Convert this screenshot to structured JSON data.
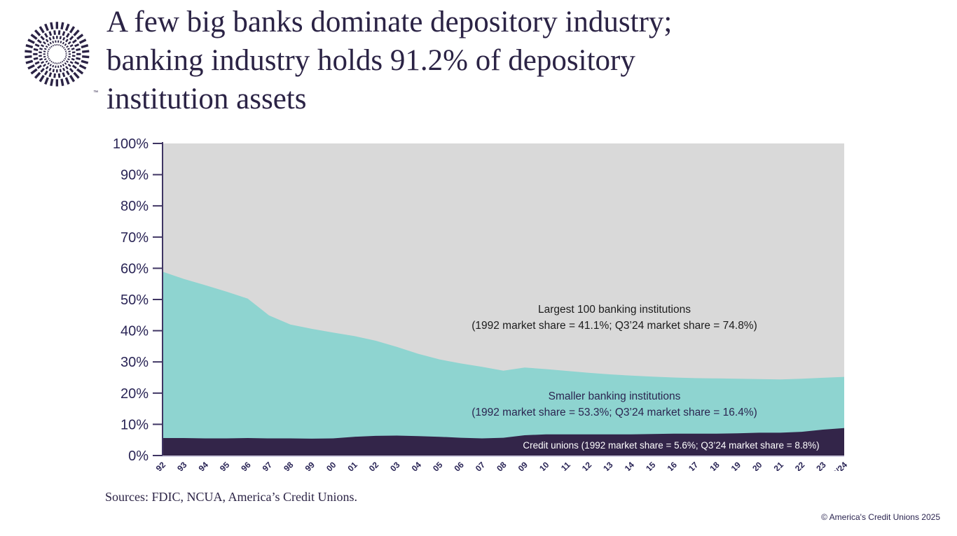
{
  "header": {
    "title_lines": [
      "A few big banks dominate depository industry;",
      "banking industry holds 91.2% of depository",
      "institution assets"
    ],
    "logo_tm": "™"
  },
  "footer": {
    "sources": "Sources: FDIC, NCUA, America’s Credit Unions.",
    "copyright": "© America's Credit Unions 2025"
  },
  "colors": {
    "title_text": "#2b2345",
    "axis_text": "#2a2556",
    "axis_line": "#3f3563",
    "bottom_axis_line": "#cfccdf",
    "credit_unions_area": "#332549",
    "smaller_banks_area": "#8ed4d0",
    "largest_banks_area": "#d9d9d9",
    "background": "#ffffff"
  },
  "chart_data": {
    "type": "area",
    "stacked": true,
    "title": "Depository institution asset market share by year",
    "xlabel": "",
    "ylabel": "",
    "ylim": [
      0,
      100
    ],
    "grid": false,
    "legend_position": "in-plot annotations",
    "x": [
      "92",
      "93",
      "94",
      "95",
      "96",
      "97",
      "98",
      "99",
      "00",
      "01",
      "02",
      "03",
      "04",
      "05",
      "06",
      "07",
      "08",
      "09",
      "10",
      "11",
      "12",
      "13",
      "14",
      "15",
      "16",
      "17",
      "18",
      "19",
      "20",
      "21",
      "22",
      "23",
      "09/24"
    ],
    "yticks": [
      "0%",
      "10%",
      "20%",
      "30%",
      "40%",
      "50%",
      "60%",
      "70%",
      "80%",
      "90%",
      "100%"
    ],
    "series": [
      {
        "name": "Credit unions",
        "color": "#332549",
        "values": [
          5.6,
          5.6,
          5.5,
          5.5,
          5.6,
          5.5,
          5.5,
          5.4,
          5.5,
          6.0,
          6.3,
          6.4,
          6.2,
          6.0,
          5.7,
          5.5,
          5.7,
          6.5,
          6.8,
          6.8,
          6.8,
          6.8,
          6.8,
          6.9,
          7.0,
          7.0,
          7.0,
          7.1,
          7.3,
          7.3,
          7.6,
          8.3,
          8.8
        ]
      },
      {
        "name": "Smaller banking institutions",
        "color": "#8ed4d0",
        "values": [
          53.3,
          51.0,
          49.1,
          47.0,
          44.7,
          39.4,
          36.5,
          35.2,
          33.9,
          32.3,
          30.5,
          28.4,
          26.4,
          24.8,
          23.8,
          22.9,
          21.5,
          21.7,
          20.9,
          20.3,
          19.7,
          19.2,
          18.8,
          18.4,
          18.0,
          17.8,
          17.7,
          17.5,
          17.2,
          17.1,
          17.0,
          16.6,
          16.4
        ]
      },
      {
        "name": "Largest 100 banking institutions",
        "color": "#d9d9d9",
        "values": [
          41.1,
          43.4,
          45.4,
          47.5,
          49.7,
          55.1,
          58.0,
          59.4,
          60.6,
          61.7,
          63.2,
          65.2,
          67.4,
          69.2,
          70.5,
          71.6,
          72.8,
          71.8,
          72.3,
          72.9,
          73.5,
          74.0,
          74.4,
          74.7,
          75.0,
          75.2,
          75.3,
          75.4,
          75.5,
          75.6,
          75.4,
          75.1,
          74.8
        ]
      }
    ],
    "annotations": [
      {
        "lines": [
          "Largest 100 banking institutions",
          "(1992 market share = 41.1%; Q3’24 market share = 74.8%)"
        ]
      },
      {
        "lines": [
          "Smaller banking institutions",
          "(1992 market share = 53.3%; Q3’24 market share = 16.4%)"
        ]
      },
      {
        "lines": [
          "Credit unions (1992 market share = 5.6%; Q3’24 market share = 8.8%)"
        ]
      }
    ]
  }
}
